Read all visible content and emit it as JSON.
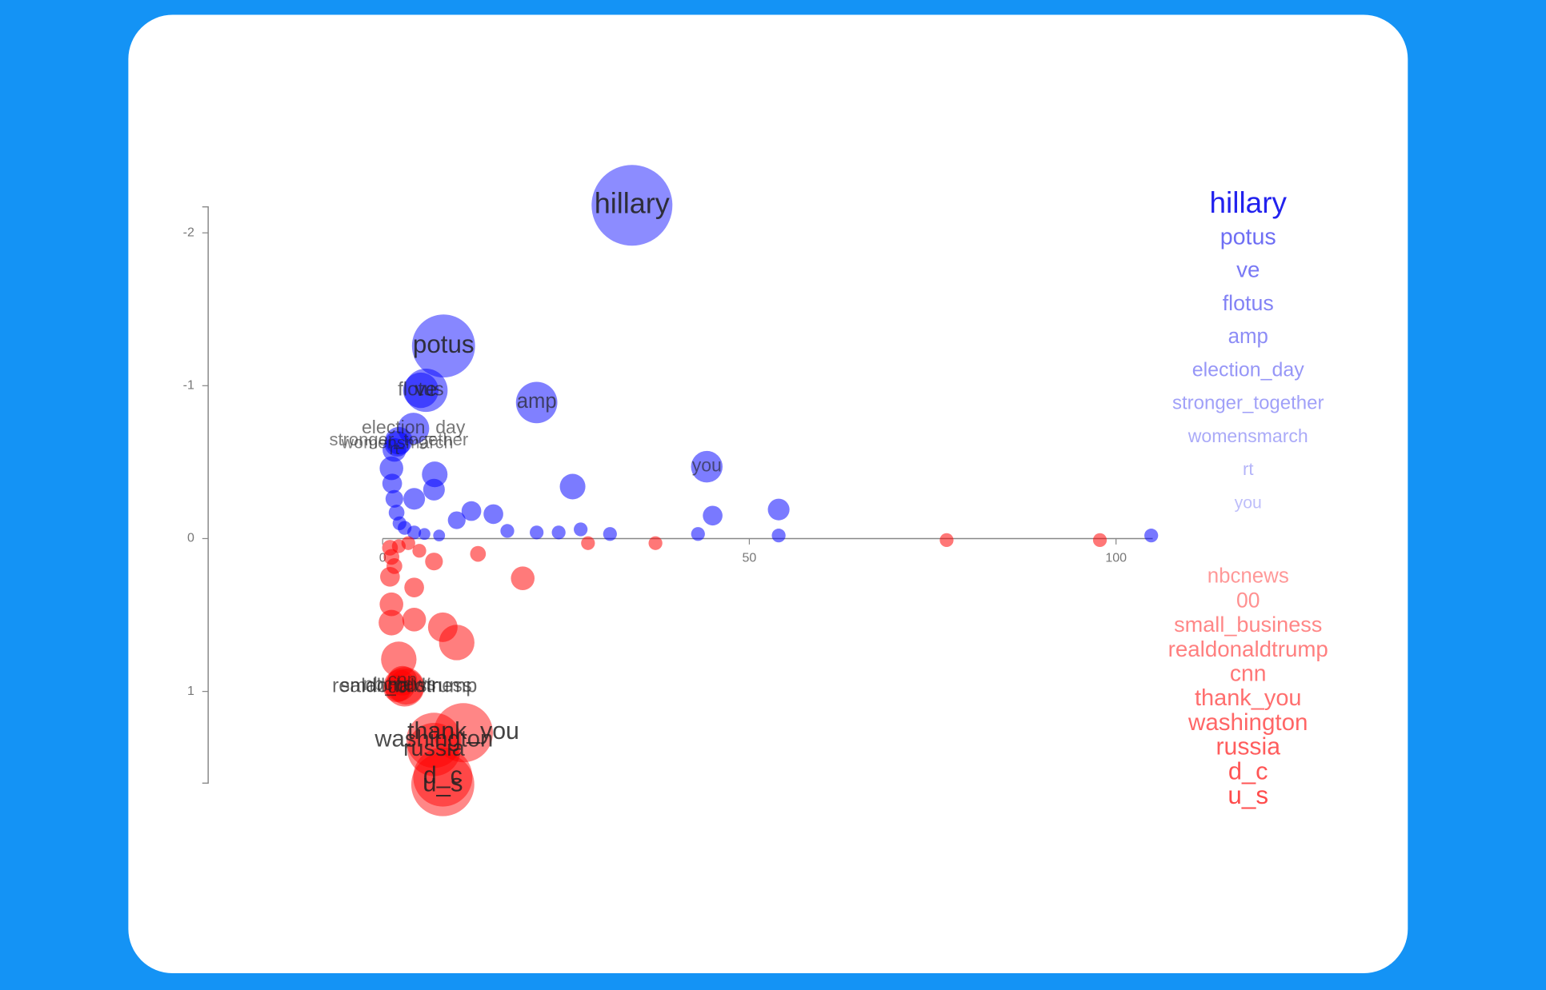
{
  "chart_data": {
    "type": "scatter",
    "xlim": [
      0,
      105
    ],
    "ylim": [
      1.6,
      -2.17
    ],
    "xticks": [
      0,
      50,
      100
    ],
    "yticks": [
      -2,
      -1,
      0,
      1
    ],
    "series": [
      {
        "color": "#0000ff",
        "x": [
          34.0,
          8.3,
          5.9,
          5.2,
          21.0,
          4.2,
          2.2,
          2.0,
          1.6,
          44.2,
          25.9,
          7.1,
          7.0,
          54.0,
          45.0,
          15.1,
          12.1,
          10.1,
          4.3,
          104.8,
          54.0,
          43.0,
          31.0,
          27.0,
          24.0,
          21.0,
          17.0,
          1.2,
          1.3,
          1.6,
          1.9,
          2.3,
          3.0,
          4.3,
          5.7,
          7.7
        ],
        "values": [
          -2.18,
          -1.26,
          -0.97,
          -0.97,
          -0.89,
          -0.72,
          -0.64,
          -0.62,
          -0.58,
          -0.47,
          -0.34,
          -0.42,
          -0.32,
          -0.19,
          -0.15,
          -0.16,
          -0.18,
          -0.12,
          -0.26,
          -0.02,
          -0.02,
          -0.03,
          -0.03,
          -0.06,
          -0.04,
          -0.04,
          -0.05,
          -0.46,
          -0.36,
          -0.26,
          -0.17,
          -0.1,
          -0.07,
          -0.04,
          -0.03,
          -0.02
        ],
        "sizes": [
          41,
          32,
          22,
          18,
          21,
          16,
          14,
          13,
          12,
          16,
          13,
          13,
          11,
          11,
          10,
          10,
          10,
          9,
          11,
          7,
          7,
          7,
          7,
          7,
          7,
          7,
          7,
          12,
          10,
          9,
          8,
          7,
          7,
          7,
          6,
          6
        ],
        "labels": [
          "hillary",
          "potus",
          "ve",
          "flotus",
          "amp",
          "election_day",
          "stronger_together",
          "womensmarch",
          "rt",
          "you",
          null,
          null,
          null,
          null,
          null,
          null,
          null,
          null,
          null,
          null,
          null,
          null,
          null,
          null,
          null,
          null,
          null,
          null,
          null,
          null,
          null,
          null,
          null,
          null,
          null,
          null
        ]
      },
      {
        "color": "#ff0000",
        "x": [
          3.0,
          3.2,
          2.3,
          2.7,
          2.0,
          11.0,
          7.0,
          7.0,
          8.2,
          8.2,
          1.2,
          1.2,
          2.2,
          1.0,
          19.1,
          10.1,
          8.2,
          4.3,
          4.3,
          7.0,
          13.0,
          76.9,
          97.8,
          37.2,
          28.0,
          1.0,
          1.2,
          1.6,
          2.2,
          3.5,
          5.0
        ],
        "values": [
          0.97,
          0.97,
          0.96,
          0.93,
          0.98,
          1.27,
          1.32,
          1.38,
          1.56,
          1.61,
          0.55,
          0.43,
          0.79,
          0.25,
          0.26,
          0.68,
          0.58,
          0.53,
          0.32,
          0.15,
          0.1,
          0.01,
          0.01,
          0.03,
          0.03,
          0.06,
          0.12,
          0.18,
          0.05,
          0.03,
          0.08
        ],
        "sizes": [
          20,
          18,
          16,
          15,
          14,
          30,
          28,
          27,
          30,
          32,
          13,
          12,
          18,
          10,
          12,
          18,
          15,
          12,
          10,
          9,
          8,
          7,
          7,
          7,
          7,
          8,
          8,
          8,
          7,
          7,
          7
        ],
        "labels": [
          "realdonaldtrump",
          "small_business",
          "nbcnews",
          "cnn",
          "00",
          "thank_you",
          "washington",
          "russia",
          "d_c",
          "u_s",
          null,
          null,
          null,
          null,
          null,
          null,
          null,
          null,
          null,
          null,
          null,
          null,
          null,
          null,
          null,
          null,
          null,
          null,
          null,
          null,
          null
        ]
      }
    ],
    "term_lists": [
      {
        "color": "#2222ee",
        "terms": [
          "hillary",
          "potus",
          "ve",
          "flotus",
          "amp",
          "election_day",
          "stronger_together",
          "womensmarch",
          "rt",
          "you"
        ]
      },
      {
        "color": "#ff4444",
        "terms": [
          "nbcnews",
          "00",
          "small_business",
          "realdonaldtrump",
          "cnn",
          "thank_you",
          "washington",
          "russia",
          "d_c",
          "u_s"
        ]
      }
    ]
  }
}
